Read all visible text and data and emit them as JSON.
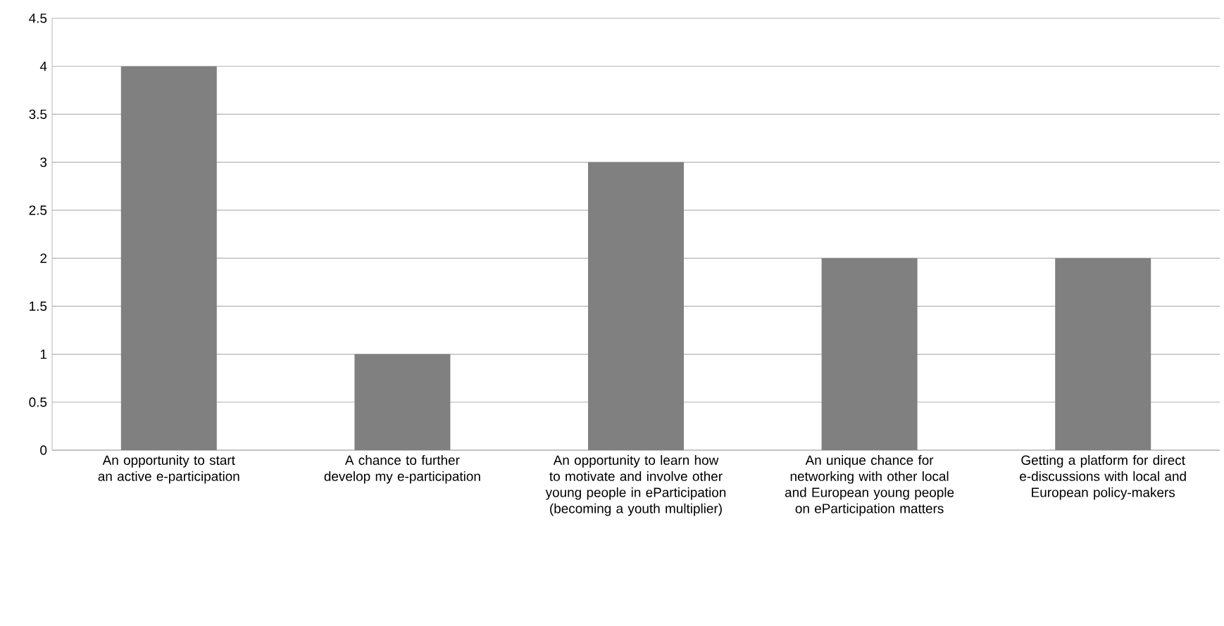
{
  "chart_data": {
    "type": "bar",
    "categories": [
      "An opportunity to start an active e-participation",
      "A chance to further develop my e-participation",
      "An opportunity to learn how to motivate and involve other young people in eParticipation (becoming a youth multiplier)",
      "An unique chance for networking with other local and European young people on eParticipation matters",
      "Getting a platform for direct e-discussions with local and European policy-makers"
    ],
    "values": [
      4,
      1,
      3,
      2,
      2
    ],
    "color": "#808080",
    "ylim": [
      0,
      4.5
    ],
    "yticks": [
      0,
      0.5,
      1,
      1.5,
      2,
      2.5,
      3,
      3.5,
      4,
      4.5
    ],
    "grid": "y"
  }
}
